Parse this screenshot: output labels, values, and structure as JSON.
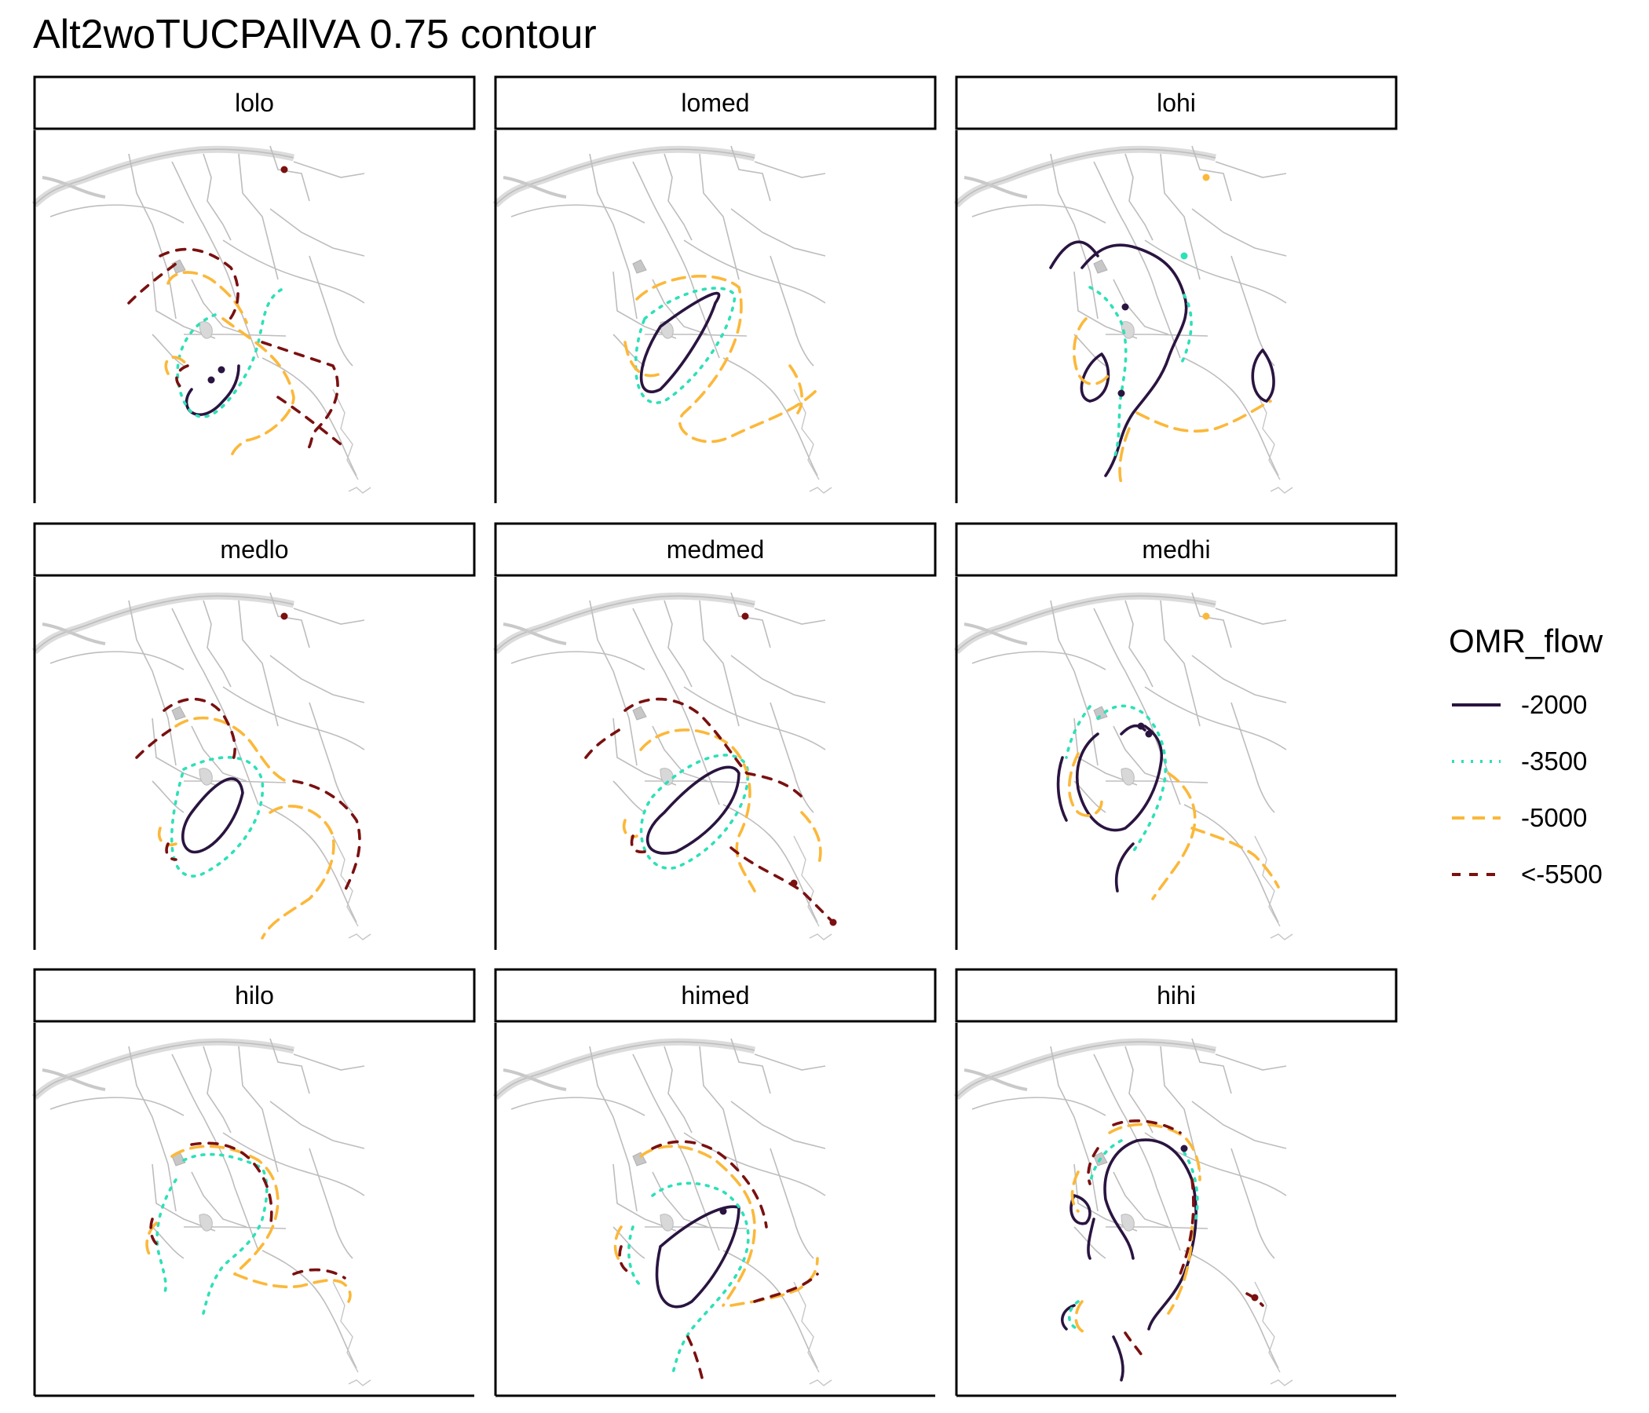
{
  "chart_data": {
    "type": "contour-facet-map",
    "title": "Alt2woTUCPAllVA 0.75 contour",
    "facets": [
      "lolo",
      "lomed",
      "lohi",
      "medlo",
      "medmed",
      "medhi",
      "hilo",
      "himed",
      "hihi"
    ],
    "facet_grid": {
      "rows": 3,
      "cols": 3
    },
    "legend": {
      "title": "OMR_flow",
      "position": "right",
      "levels": [
        {
          "label": "-2000",
          "color": "#2a1440",
          "linetype": "solid"
        },
        {
          "label": "-3500",
          "color": "#2ee0b8",
          "linetype": "dotted"
        },
        {
          "label": "-5000",
          "color": "#fbb83a",
          "linetype": "longdash"
        },
        {
          "label": "<-5500",
          "color": "#7a1010",
          "linetype": "dashed"
        }
      ]
    },
    "background": "waterway network basemap (grey)",
    "grid": false
  }
}
